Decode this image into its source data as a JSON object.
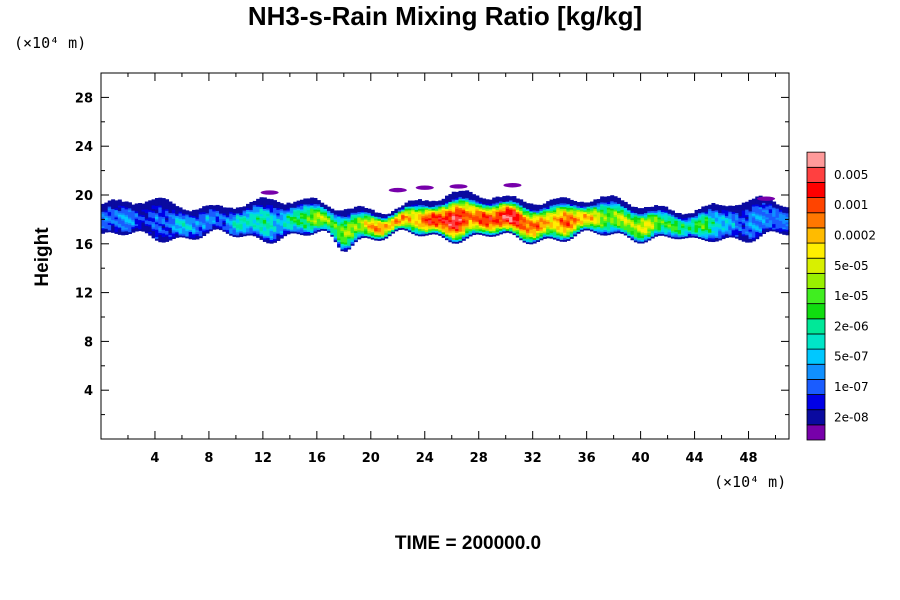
{
  "chart_data": {
    "type": "heatmap",
    "title": "NH3-s-Rain Mixing Ratio [kg/kg]",
    "ylabel": "Height",
    "x_unit": "(×10⁴ m)",
    "y_unit": "(×10⁴ m)",
    "footer": "TIME = 200000.0",
    "xlim": [
      0,
      51
    ],
    "ylim": [
      0,
      30
    ],
    "x_ticks": [
      "4",
      "8",
      "12",
      "16",
      "20",
      "24",
      "28",
      "32",
      "36",
      "40",
      "44",
      "48"
    ],
    "x_tick_values": [
      4,
      8,
      12,
      16,
      20,
      24,
      28,
      32,
      36,
      40,
      44,
      48
    ],
    "y_ticks": [
      "4",
      "8",
      "12",
      "16",
      "20",
      "24",
      "28"
    ],
    "y_tick_values": [
      4,
      8,
      12,
      16,
      20,
      24,
      28
    ],
    "colorbar": {
      "colors": [
        "#7700aa",
        "#0a0aa0",
        "#0000e6",
        "#1a5cff",
        "#1090ff",
        "#00c8ff",
        "#00e5c8",
        "#00e898",
        "#10dd10",
        "#40ee20",
        "#99f000",
        "#d8f000",
        "#ffee00",
        "#ffbb00",
        "#ff7700",
        "#ff4400",
        "#ff0000",
        "#ff4040",
        "#ff9a9a"
      ],
      "labels": [
        "2e-08",
        "1e-07",
        "5e-07",
        "2e-06",
        "1e-05",
        "5e-05",
        "0.0002",
        "0.001",
        "0.005"
      ],
      "label_band_index": [
        1,
        3,
        5,
        7,
        9,
        11,
        13,
        15,
        17
      ]
    },
    "field": {
      "description_levels": "band index 0=lowest (purple) .. 18=highest (pink)",
      "layer_bottom_base": 16.6,
      "layer_top_base": 19.0,
      "core_x_range": [
        6,
        46
      ],
      "peak_x": 28
    }
  }
}
